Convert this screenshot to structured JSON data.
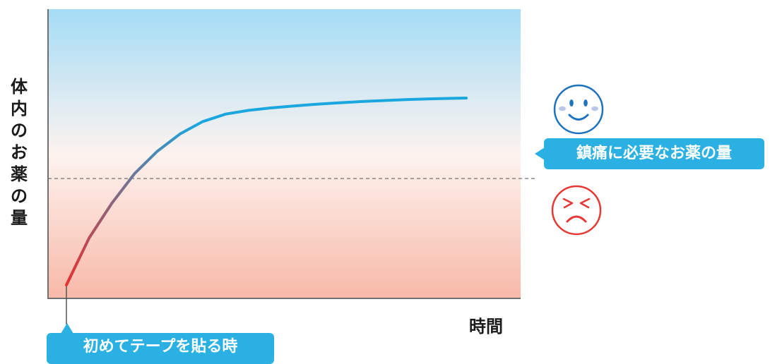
{
  "chart_data": {
    "type": "line",
    "title": "",
    "xlabel": "時間",
    "ylabel": "体内のお薬の量",
    "ylabel_chars": [
      "体",
      "内",
      "の",
      "お",
      "薬",
      "の",
      "量"
    ],
    "xlim": [
      0,
      100
    ],
    "ylim": [
      0,
      100
    ],
    "grid": false,
    "series": [
      {
        "x": [
          0,
          5,
          10,
          15,
          20,
          25,
          30,
          35,
          40,
          45,
          50,
          55,
          60,
          65,
          70,
          75,
          80,
          85,
          88
        ],
        "y": [
          5,
          24,
          38,
          50,
          59,
          66,
          71,
          74,
          75.5,
          76.5,
          77.3,
          78,
          78.6,
          79.1,
          79.5,
          79.9,
          80.2,
          80.4,
          80.5
        ],
        "gradient": [
          "#e8302e",
          "#1aa6df"
        ]
      }
    ],
    "threshold": {
      "y": 48,
      "label": "鎮痛に必要なお薬の量",
      "style": "dashed"
    },
    "start_marker": {
      "x": 0,
      "label": "初めてテープを貼る時"
    },
    "background_gradient": [
      "#a4dcf6",
      "#fdf3ef",
      "#f8b9a8"
    ],
    "annotations": [
      {
        "icon": "smiley-face-icon",
        "region": "above-threshold",
        "color": "#1e73be"
      },
      {
        "icon": "frowning-face-icon",
        "region": "below-threshold",
        "color": "#e53935"
      }
    ]
  }
}
